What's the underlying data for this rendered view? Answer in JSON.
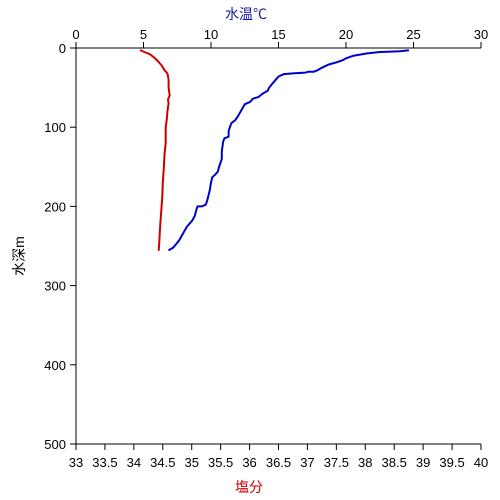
{
  "chart_data": {
    "type": "line",
    "top_axis": {
      "label": "水温℃",
      "range": [
        0,
        30
      ],
      "ticks": [
        0,
        5,
        10,
        15,
        20,
        25,
        30
      ],
      "tick_labels": [
        "0",
        "5",
        "10",
        "15",
        "20",
        "25",
        "30"
      ],
      "color": "#1a1aa0"
    },
    "bottom_axis": {
      "label": "塩分",
      "range": [
        33,
        40
      ],
      "ticks": [
        33,
        33.5,
        34,
        34.5,
        35,
        35.5,
        36,
        36.5,
        37,
        37.5,
        38,
        38.5,
        39,
        39.5,
        40
      ],
      "tick_labels": [
        "33",
        "33.5",
        "34",
        "34.5",
        "35",
        "35.5",
        "36",
        "36.5",
        "37",
        "37.5",
        "38",
        "38.5",
        "39",
        "39.5",
        "40"
      ],
      "color": "#cc0000"
    },
    "y_axis": {
      "label": "水深m",
      "range": [
        0,
        500
      ],
      "inverted": true,
      "ticks": [
        0,
        100,
        200,
        300,
        400,
        500
      ],
      "tick_labels": [
        "0",
        "100",
        "200",
        "300",
        "400",
        "500"
      ]
    },
    "series": [
      {
        "key": "temperature",
        "axis": "top",
        "color": "#0000cc",
        "points": [
          {
            "x": 24.6,
            "y": 3
          },
          {
            "x": 24.0,
            "y": 4
          },
          {
            "x": 22.5,
            "y": 5
          },
          {
            "x": 21.5,
            "y": 7
          },
          {
            "x": 20.5,
            "y": 10
          },
          {
            "x": 20.0,
            "y": 13
          },
          {
            "x": 19.8,
            "y": 15
          },
          {
            "x": 19.3,
            "y": 18
          },
          {
            "x": 18.7,
            "y": 21
          },
          {
            "x": 18.2,
            "y": 25
          },
          {
            "x": 17.9,
            "y": 28
          },
          {
            "x": 17.6,
            "y": 30
          },
          {
            "x": 17.2,
            "y": 30
          },
          {
            "x": 17.0,
            "y": 31
          },
          {
            "x": 16.2,
            "y": 32
          },
          {
            "x": 15.4,
            "y": 33
          },
          {
            "x": 15.0,
            "y": 36
          },
          {
            "x": 14.8,
            "y": 40
          },
          {
            "x": 14.6,
            "y": 44
          },
          {
            "x": 14.3,
            "y": 50
          },
          {
            "x": 14.2,
            "y": 54
          },
          {
            "x": 13.8,
            "y": 58
          },
          {
            "x": 13.5,
            "y": 62
          },
          {
            "x": 13.1,
            "y": 64
          },
          {
            "x": 12.9,
            "y": 68
          },
          {
            "x": 12.5,
            "y": 71
          },
          {
            "x": 12.2,
            "y": 80
          },
          {
            "x": 12.0,
            "y": 86
          },
          {
            "x": 11.8,
            "y": 91
          },
          {
            "x": 11.5,
            "y": 95
          },
          {
            "x": 11.3,
            "y": 105
          },
          {
            "x": 11.3,
            "y": 112
          },
          {
            "x": 11.0,
            "y": 114
          },
          {
            "x": 10.9,
            "y": 118
          },
          {
            "x": 10.8,
            "y": 130
          },
          {
            "x": 10.8,
            "y": 140
          },
          {
            "x": 10.6,
            "y": 150
          },
          {
            "x": 10.5,
            "y": 156
          },
          {
            "x": 10.3,
            "y": 160
          },
          {
            "x": 10.1,
            "y": 163
          },
          {
            "x": 10.0,
            "y": 170
          },
          {
            "x": 9.9,
            "y": 180
          },
          {
            "x": 9.8,
            "y": 187
          },
          {
            "x": 9.7,
            "y": 194
          },
          {
            "x": 9.6,
            "y": 198
          },
          {
            "x": 9.3,
            "y": 200
          },
          {
            "x": 9.0,
            "y": 200
          },
          {
            "x": 8.9,
            "y": 205
          },
          {
            "x": 8.8,
            "y": 212
          },
          {
            "x": 8.6,
            "y": 218
          },
          {
            "x": 8.4,
            "y": 222
          },
          {
            "x": 8.2,
            "y": 226
          },
          {
            "x": 8.0,
            "y": 232
          },
          {
            "x": 7.8,
            "y": 238
          },
          {
            "x": 7.6,
            "y": 244
          },
          {
            "x": 7.4,
            "y": 248
          },
          {
            "x": 7.2,
            "y": 252
          },
          {
            "x": 6.9,
            "y": 255
          }
        ]
      },
      {
        "key": "salinity",
        "axis": "bottom",
        "color": "#cc0000",
        "points": [
          {
            "x": 34.12,
            "y": 3
          },
          {
            "x": 34.18,
            "y": 5
          },
          {
            "x": 34.28,
            "y": 8
          },
          {
            "x": 34.35,
            "y": 12
          },
          {
            "x": 34.42,
            "y": 17
          },
          {
            "x": 34.48,
            "y": 22
          },
          {
            "x": 34.53,
            "y": 28
          },
          {
            "x": 34.58,
            "y": 32
          },
          {
            "x": 34.6,
            "y": 40
          },
          {
            "x": 34.6,
            "y": 50
          },
          {
            "x": 34.62,
            "y": 60
          },
          {
            "x": 34.59,
            "y": 65
          },
          {
            "x": 34.6,
            "y": 70
          },
          {
            "x": 34.58,
            "y": 80
          },
          {
            "x": 34.57,
            "y": 90
          },
          {
            "x": 34.55,
            "y": 100
          },
          {
            "x": 34.55,
            "y": 120
          },
          {
            "x": 34.53,
            "y": 135
          },
          {
            "x": 34.52,
            "y": 150
          },
          {
            "x": 34.5,
            "y": 170
          },
          {
            "x": 34.49,
            "y": 190
          },
          {
            "x": 34.47,
            "y": 210
          },
          {
            "x": 34.45,
            "y": 230
          },
          {
            "x": 34.44,
            "y": 245
          },
          {
            "x": 34.43,
            "y": 255
          }
        ]
      }
    ]
  }
}
